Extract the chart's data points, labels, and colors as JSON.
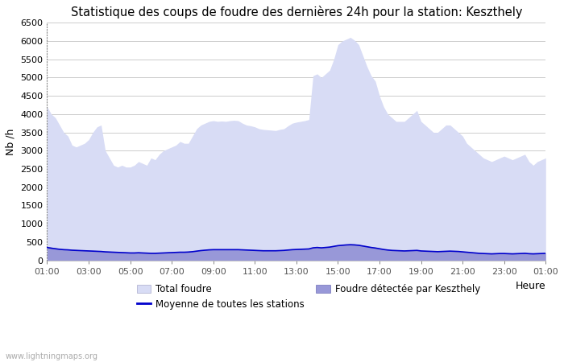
{
  "title": "Statistique des coups de foudre des dernières 24h pour la station: Keszthely",
  "ylabel": "Nb /h",
  "xlabel": "Heure",
  "watermark": "www.lightningmaps.org",
  "ylim": [
    0,
    6500
  ],
  "yticks": [
    0,
    500,
    1000,
    1500,
    2000,
    2500,
    3000,
    3500,
    4000,
    4500,
    5000,
    5500,
    6000,
    6500
  ],
  "xtick_labels": [
    "01:00",
    "03:00",
    "05:00",
    "07:00",
    "09:00",
    "11:00",
    "13:00",
    "15:00",
    "17:00",
    "19:00",
    "21:00",
    "23:00",
    "01:00"
  ],
  "total_foudre_color": "#d8dcf5",
  "keszthely_color": "#9898d8",
  "moyenne_color": "#0000cc",
  "background_color": "#ffffff",
  "grid_color": "#cccccc",
  "title_fontsize": 10.5,
  "axis_fontsize": 9,
  "tick_fontsize": 8,
  "legend_fontsize": 8.5,
  "total_foudre": [
    4200,
    4000,
    3900,
    3700,
    3500,
    3400,
    3150,
    3100,
    3150,
    3200,
    3300,
    3500,
    3650,
    3700,
    3000,
    2800,
    2600,
    2550,
    2600,
    2550,
    2550,
    2600,
    2700,
    2650,
    2600,
    2800,
    2750,
    2900,
    3000,
    3050,
    3100,
    3150,
    3250,
    3200,
    3200,
    3400,
    3600,
    3700,
    3750,
    3800,
    3820,
    3800,
    3810,
    3800,
    3820,
    3830,
    3820,
    3750,
    3700,
    3680,
    3650,
    3600,
    3580,
    3570,
    3560,
    3550,
    3580,
    3600,
    3680,
    3750,
    3780,
    3800,
    3820,
    3850,
    5050,
    5100,
    5000,
    5100,
    5200,
    5500,
    5900,
    6000,
    6050,
    6100,
    6020,
    5900,
    5600,
    5300,
    5050,
    4900,
    4500,
    4200,
    4000,
    3900,
    3800,
    3800,
    3800,
    3900,
    4000,
    4100,
    3800,
    3700,
    3600,
    3500,
    3500,
    3600,
    3700,
    3700,
    3600,
    3500,
    3400,
    3200,
    3100,
    3000,
    2900,
    2800,
    2750,
    2700,
    2750,
    2800,
    2850,
    2800,
    2750,
    2800,
    2850,
    2900,
    2700,
    2600,
    2700,
    2750,
    2800
  ],
  "keszthely": [
    380,
    360,
    340,
    320,
    310,
    305,
    295,
    290,
    285,
    280,
    275,
    270,
    265,
    260,
    250,
    245,
    240,
    235,
    230,
    225,
    220,
    220,
    225,
    220,
    215,
    210,
    210,
    215,
    220,
    225,
    230,
    235,
    240,
    240,
    245,
    255,
    270,
    285,
    295,
    305,
    310,
    310,
    310,
    310,
    310,
    310,
    310,
    305,
    300,
    295,
    290,
    285,
    280,
    280,
    280,
    280,
    285,
    290,
    300,
    310,
    315,
    320,
    325,
    330,
    360,
    370,
    360,
    370,
    380,
    400,
    420,
    430,
    440,
    450,
    445,
    430,
    410,
    390,
    370,
    355,
    330,
    310,
    295,
    285,
    280,
    275,
    270,
    275,
    280,
    285,
    270,
    265,
    260,
    255,
    250,
    255,
    260,
    265,
    260,
    255,
    245,
    235,
    225,
    215,
    205,
    200,
    195,
    190,
    195,
    200,
    200,
    195,
    190,
    195,
    200,
    205,
    195,
    190,
    195,
    200,
    205
  ],
  "moyenne": [
    350,
    330,
    315,
    300,
    290,
    285,
    275,
    270,
    265,
    260,
    255,
    250,
    245,
    240,
    230,
    225,
    220,
    215,
    210,
    205,
    200,
    200,
    205,
    200,
    195,
    190,
    190,
    195,
    200,
    205,
    210,
    215,
    220,
    220,
    225,
    235,
    250,
    265,
    275,
    285,
    290,
    290,
    290,
    290,
    290,
    290,
    290,
    285,
    280,
    275,
    270,
    265,
    260,
    260,
    260,
    260,
    265,
    270,
    280,
    290,
    295,
    300,
    305,
    310,
    340,
    350,
    340,
    350,
    360,
    380,
    400,
    410,
    420,
    425,
    420,
    410,
    390,
    370,
    350,
    335,
    315,
    295,
    280,
    270,
    265,
    260,
    255,
    260,
    265,
    270,
    255,
    250,
    245,
    240,
    235,
    240,
    245,
    250,
    245,
    240,
    230,
    220,
    210,
    200,
    190,
    185,
    180,
    175,
    180,
    185,
    185,
    180,
    175,
    180,
    185,
    190,
    180,
    175,
    180,
    185,
    190
  ]
}
